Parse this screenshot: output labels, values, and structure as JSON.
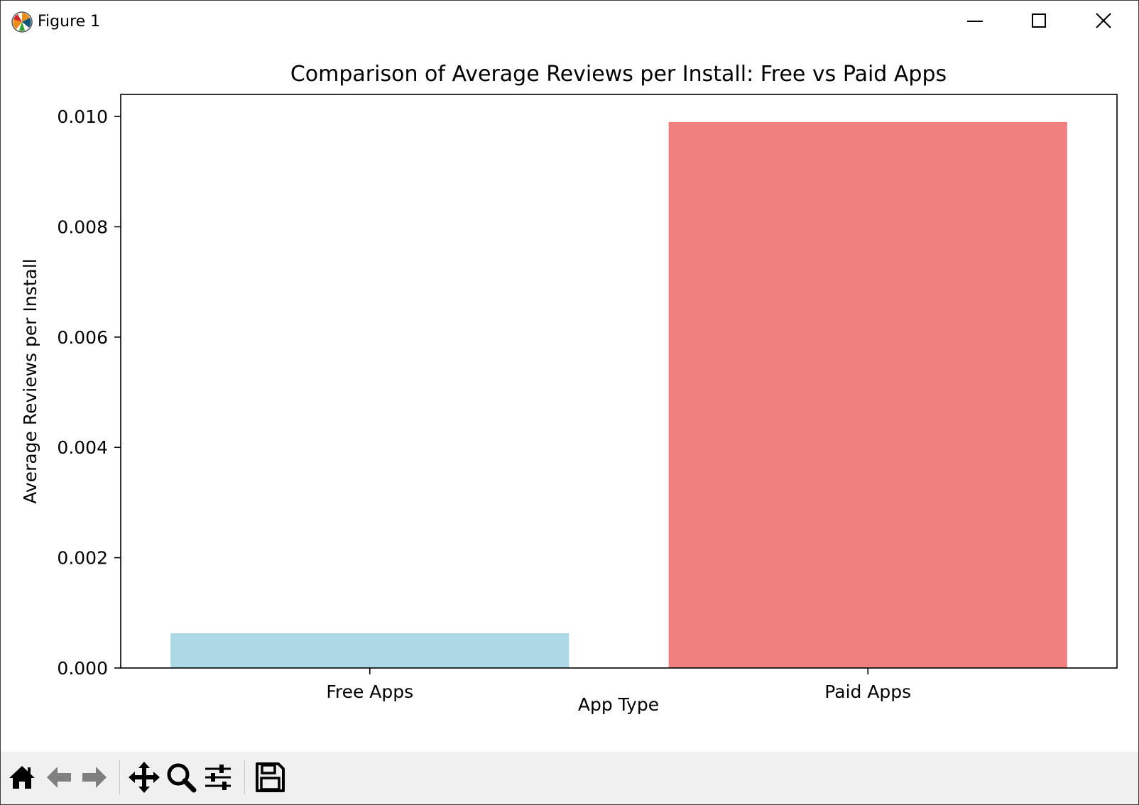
{
  "window": {
    "title": "Figure 1",
    "icon": "matplotlib-logo-icon",
    "controls": [
      "minimize-icon",
      "maximize-icon",
      "close-icon"
    ]
  },
  "toolbar": {
    "buttons": [
      {
        "name": "home-button",
        "icon": "home-icon",
        "enabled": true
      },
      {
        "name": "back-button",
        "icon": "arrow-left-icon",
        "enabled": false
      },
      {
        "name": "forward-button",
        "icon": "arrow-right-icon",
        "enabled": false
      },
      {
        "name": "pan-button",
        "icon": "move-arrows-icon",
        "enabled": true
      },
      {
        "name": "zoom-button",
        "icon": "magnifier-icon",
        "enabled": true
      },
      {
        "name": "configure-subplots-button",
        "icon": "sliders-icon",
        "enabled": true
      },
      {
        "name": "save-button",
        "icon": "floppy-disk-icon",
        "enabled": true
      }
    ]
  },
  "chart_data": {
    "type": "bar",
    "title": "Comparison of Average Reviews per Install: Free vs Paid Apps",
    "xlabel": "App Type",
    "ylabel": "Average Reviews per Install",
    "categories": [
      "Free Apps",
      "Paid Apps"
    ],
    "values": [
      0.00063,
      0.0099
    ],
    "colors": [
      "#add8e6",
      "#f08080"
    ],
    "ylim": [
      0,
      0.0104
    ],
    "yticks": [
      0.0,
      0.002,
      0.004,
      0.006,
      0.008,
      0.01
    ],
    "ytick_labels": [
      "0.000",
      "0.002",
      "0.004",
      "0.006",
      "0.008",
      "0.010"
    ],
    "grid": false,
    "legend": "none"
  }
}
